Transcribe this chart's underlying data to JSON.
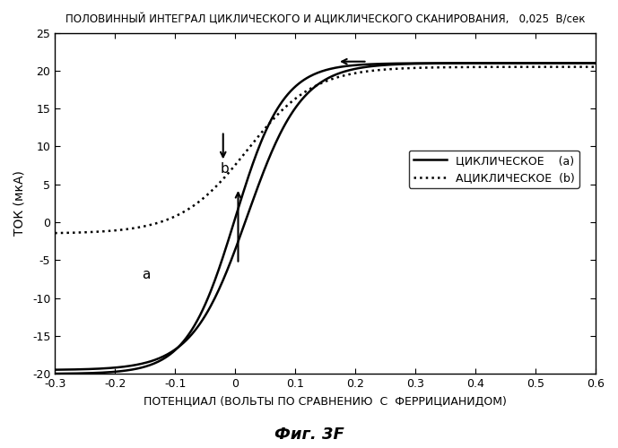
{
  "title": "ПОЛОВИННЫЙ ИНТЕГРАЛ ЦИКЛИЧЕСКОГО И АЦИКЛИЧЕСКОГО СКАНИРОВАНИЯ,   0,025  В/сек",
  "xlabel": "ПОТЕНЦИАЛ (ВОЛЬТЫ ПО СРАВНЕНИЮ  С  ФЕРРИЦИАНИДОМ)",
  "ylabel": "ТОК (мкА)",
  "caption": "Фиг. 3F",
  "xlim": [
    -0.3,
    0.6
  ],
  "ylim": [
    -20,
    25
  ],
  "xticks": [
    -0.3,
    -0.2,
    -0.1,
    0.0,
    0.1,
    0.2,
    0.3,
    0.4,
    0.5,
    0.6
  ],
  "yticks": [
    -20,
    -15,
    -10,
    -5,
    0,
    5,
    10,
    15,
    20,
    25
  ],
  "legend_labels": [
    "ЦИКЛИЧЕСКОЕ",
    "АЦИКЛИЧЕСКОЕ"
  ],
  "legend_suffixes": [
    "(a)",
    "(b)"
  ],
  "annotation_a": "a",
  "annotation_b": "b",
  "background_color": "#ffffff",
  "line_color": "#000000"
}
